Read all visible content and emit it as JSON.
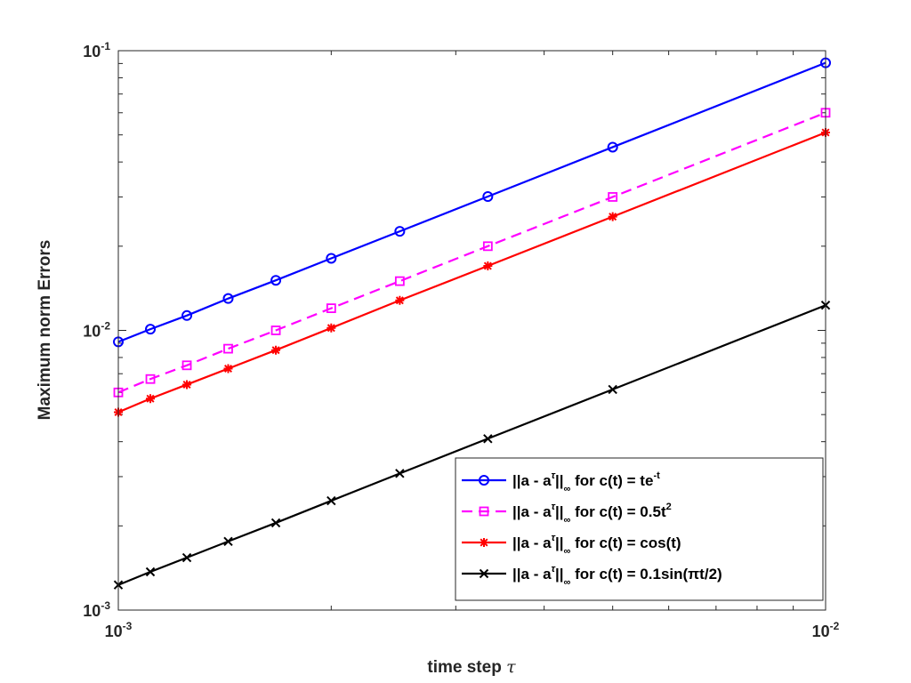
{
  "chart_data": {
    "type": "line",
    "xscale": "log",
    "yscale": "log",
    "xlim": [
      0.001,
      0.01
    ],
    "ylim": [
      0.001,
      0.1
    ],
    "grid": false,
    "legend_position": "bottom-right",
    "xlabel": "time step",
    "xlabel_symbol": "τ",
    "ylabel": "Maximum norm Errors",
    "x_ticks": [
      {
        "base": "10",
        "exp": "-3"
      },
      {
        "base": "10",
        "exp": "-2"
      }
    ],
    "y_ticks": [
      {
        "base": "10",
        "exp": "-3"
      },
      {
        "base": "10",
        "exp": "-2"
      },
      {
        "base": "10",
        "exp": "-1"
      }
    ],
    "x": [
      0.001,
      0.00111,
      0.00125,
      0.00143,
      0.00167,
      0.002,
      0.0025,
      0.00333,
      0.005,
      0.01
    ],
    "series": [
      {
        "legend": {
          "norm": "||a - a",
          "sup": "τ",
          "sub": "∞",
          "text": " for c(t) = te",
          "text_sup": "-t"
        },
        "color": "#0000ff",
        "line": "solid",
        "marker": "circle",
        "values": [
          0.0091,
          0.0101,
          0.0113,
          0.013,
          0.0151,
          0.0181,
          0.0226,
          0.0301,
          0.0452,
          0.0905
        ]
      },
      {
        "legend": {
          "norm": "||a - a",
          "sup": "τ",
          "sub": "∞",
          "text": " for c(t) = 0.5t",
          "text_sup": "2"
        },
        "color": "#ff00ff",
        "line": "dashed",
        "marker": "square",
        "values": [
          0.006,
          0.0067,
          0.0075,
          0.0086,
          0.01,
          0.012,
          0.015,
          0.02,
          0.03,
          0.06
        ]
      },
      {
        "legend": {
          "norm": "||a - a",
          "sup": "τ",
          "sub": "∞",
          "text": " for c(t) = cos(t)",
          "text_sup": ""
        },
        "color": "#ff0000",
        "line": "solid",
        "marker": "asterisk",
        "values": [
          0.0051,
          0.0057,
          0.0064,
          0.0073,
          0.0085,
          0.0102,
          0.0128,
          0.017,
          0.0255,
          0.051
        ]
      },
      {
        "legend": {
          "norm": "||a - a",
          "sup": "τ",
          "sub": "∞",
          "text": " for c(t) = 0.1sin(πt/2)",
          "text_sup": ""
        },
        "color": "#000000",
        "line": "solid",
        "marker": "x",
        "values": [
          0.00123,
          0.00137,
          0.00154,
          0.00176,
          0.00205,
          0.00246,
          0.00308,
          0.0041,
          0.00615,
          0.0123
        ]
      }
    ]
  }
}
